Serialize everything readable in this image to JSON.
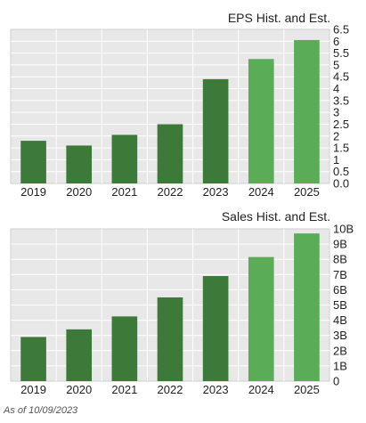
{
  "chart_data": [
    {
      "type": "bar",
      "title": "EPS Hist. and Est.",
      "categories": [
        "2019",
        "2020",
        "2021",
        "2022",
        "2023",
        "2024",
        "2025"
      ],
      "values": [
        1.8,
        1.6,
        2.05,
        2.5,
        4.4,
        5.25,
        6.05
      ],
      "estimate_flags": [
        false,
        false,
        false,
        false,
        false,
        true,
        true
      ],
      "ylim": [
        0,
        6.5
      ],
      "yticks": [
        0,
        0.5,
        1,
        1.5,
        2,
        2.5,
        3,
        3.5,
        4,
        4.5,
        5,
        5.5,
        6,
        6.5
      ],
      "ytick_labels": [
        "0.0",
        "0.5",
        "1",
        "1.5",
        "2",
        "2.5",
        "3",
        "3.5",
        "4",
        "4.5",
        "5",
        "5.5",
        "6",
        "6.5"
      ],
      "grid": true,
      "colors": {
        "historical": "#3d7a3a",
        "estimate": "#5aac57",
        "plot_bg": "#e8e8e8",
        "grid": "#ffffff"
      }
    },
    {
      "type": "bar",
      "title": "Sales Hist. and Est.",
      "categories": [
        "2019",
        "2020",
        "2021",
        "2022",
        "2023",
        "2024",
        "2025"
      ],
      "values": [
        2.9,
        3.4,
        4.25,
        5.5,
        6.9,
        8.15,
        9.7
      ],
      "estimate_flags": [
        false,
        false,
        false,
        false,
        false,
        true,
        true
      ],
      "ylim": [
        0,
        10
      ],
      "yticks": [
        0,
        1,
        2,
        3,
        4,
        5,
        6,
        7,
        8,
        9,
        10
      ],
      "ytick_labels": [
        "0",
        "1B",
        "2B",
        "3B",
        "4B",
        "5B",
        "6B",
        "7B",
        "8B",
        "9B",
        "10B"
      ],
      "grid": true,
      "colors": {
        "historical": "#3d7a3a",
        "estimate": "#5aac57",
        "plot_bg": "#e8e8e8",
        "grid": "#ffffff"
      }
    }
  ],
  "footnote": "As of 10/09/2023"
}
